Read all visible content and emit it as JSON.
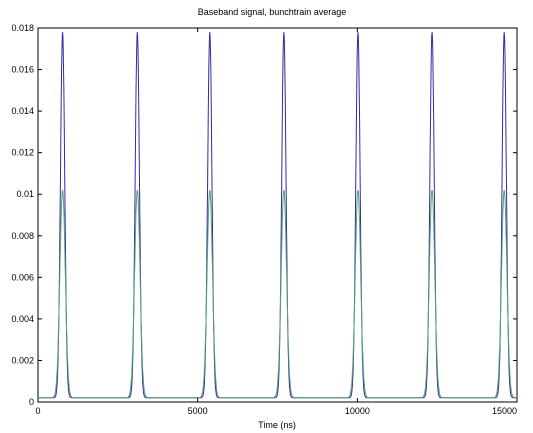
{
  "chart_data": {
    "type": "line",
    "title": "Baseband signal, bunchtrain average",
    "xlabel": "Time (ns)",
    "ylabel": "",
    "xlim": [
      0,
      15000
    ],
    "ylim": [
      0,
      0.018
    ],
    "xticks": [
      0,
      5000,
      10000,
      15000
    ],
    "xtick_labels": [
      "0",
      "5000",
      "10000",
      "15000"
    ],
    "yticks": [
      0,
      0.002,
      0.004,
      0.006,
      0.008,
      0.01,
      0.012,
      0.014,
      0.016,
      0.018
    ],
    "ytick_labels": [
      "0",
      "0.002",
      "0.004",
      "0.006",
      "0.008",
      "0.01",
      "0.012",
      "0.014",
      "0.016",
      "0.018"
    ],
    "grid": false,
    "peak_centers": [
      770,
      3110,
      5380,
      7700,
      10020,
      12340,
      14600
    ],
    "series": [
      {
        "color": "#2e2ea0",
        "peak_value": 0.0178,
        "baseline": 0.0002,
        "peak_width_ns": 95
      },
      {
        "color": "#5aa07a",
        "peak_value": 0.0102,
        "baseline": 0.0002,
        "peak_width_ns": 120
      }
    ]
  }
}
